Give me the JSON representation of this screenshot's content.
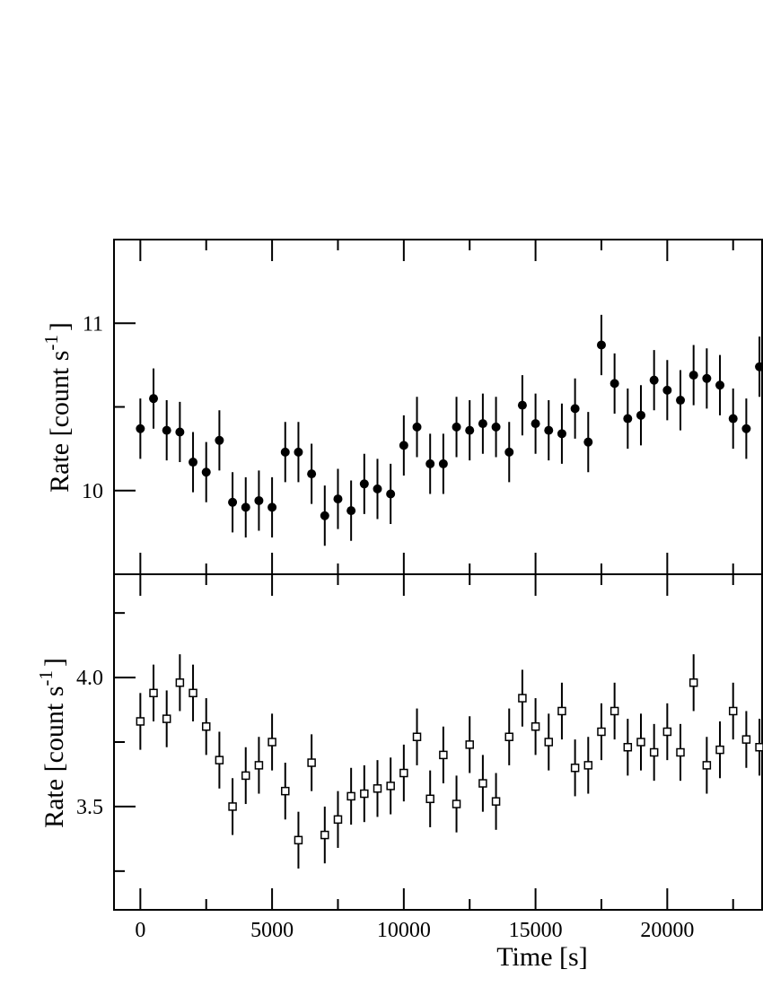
{
  "chart_data": [
    {
      "type": "scatter",
      "panel": "top",
      "marker": "filled-circle",
      "ylabel": "Rate [count s",
      "ylabel_sup": "-1",
      "ylabel_end": "]",
      "xlim": [
        -1000,
        23600
      ],
      "ylim": [
        9.5,
        11.5
      ],
      "yticks": [
        10,
        11
      ],
      "ytick_labels": [
        "10",
        "11"
      ],
      "x": [
        0,
        500,
        1000,
        1500,
        2000,
        2500,
        3000,
        3500,
        4000,
        4500,
        5000,
        5500,
        6000,
        6500,
        7000,
        7500,
        8000,
        8500,
        9000,
        9500,
        10000,
        10500,
        11000,
        11500,
        12000,
        12500,
        13000,
        13500,
        14000,
        14500,
        15000,
        15500,
        16000,
        16500,
        17000,
        17500,
        18000,
        18500,
        19000,
        19500,
        20000,
        20500,
        21000,
        21500,
        22000,
        22500,
        23000,
        23500
      ],
      "y": [
        10.37,
        10.55,
        10.36,
        10.35,
        10.17,
        10.11,
        10.3,
        9.93,
        9.9,
        9.94,
        9.9,
        10.23,
        10.23,
        10.1,
        9.85,
        9.95,
        9.88,
        10.04,
        10.01,
        9.98,
        10.27,
        10.38,
        10.16,
        10.16,
        10.38,
        10.36,
        10.4,
        10.38,
        10.23,
        10.51,
        10.4,
        10.36,
        10.34,
        10.49,
        10.29,
        10.87,
        10.64,
        10.43,
        10.45,
        10.66,
        10.6,
        10.54,
        10.69,
        10.67,
        10.63,
        10.43,
        10.37,
        10.74
      ],
      "yerr": 0.18
    },
    {
      "type": "scatter",
      "panel": "bottom",
      "marker": "open-square",
      "xlabel": "Time [s]",
      "ylabel": "Rate [count s",
      "ylabel_sup": "-1",
      "ylabel_end": "]",
      "xlim": [
        -1000,
        23600
      ],
      "ylim": [
        3.1,
        4.4
      ],
      "xticks": [
        0,
        5000,
        10000,
        15000,
        20000
      ],
      "xtick_labels": [
        "0",
        "5000",
        "10000",
        "15000",
        "20000"
      ],
      "yticks": [
        3.5,
        4.0
      ],
      "ytick_labels": [
        "3.5",
        "4.0"
      ],
      "x": [
        0,
        500,
        1000,
        1500,
        2000,
        2500,
        3000,
        3500,
        4000,
        4500,
        5000,
        5500,
        6000,
        6500,
        7000,
        7500,
        8000,
        8500,
        9000,
        9500,
        10000,
        10500,
        11000,
        11500,
        12000,
        12500,
        13000,
        13500,
        14000,
        14500,
        15000,
        15500,
        16000,
        16500,
        17000,
        17500,
        18000,
        18500,
        19000,
        19500,
        20000,
        20500,
        21000,
        21500,
        22000,
        22500,
        23000,
        23500
      ],
      "y": [
        3.83,
        3.94,
        3.84,
        3.98,
        3.94,
        3.81,
        3.68,
        3.5,
        3.62,
        3.66,
        3.75,
        3.56,
        3.37,
        3.67,
        3.39,
        3.45,
        3.54,
        3.55,
        3.57,
        3.58,
        3.63,
        3.77,
        3.53,
        3.7,
        3.51,
        3.74,
        3.59,
        3.52,
        3.77,
        3.92,
        3.81,
        3.75,
        3.87,
        3.65,
        3.66,
        3.79,
        3.87,
        3.73,
        3.75,
        3.71,
        3.79,
        3.71,
        3.98,
        3.66,
        3.72,
        3.87,
        3.76,
        3.73
      ],
      "yerr": 0.11
    }
  ]
}
